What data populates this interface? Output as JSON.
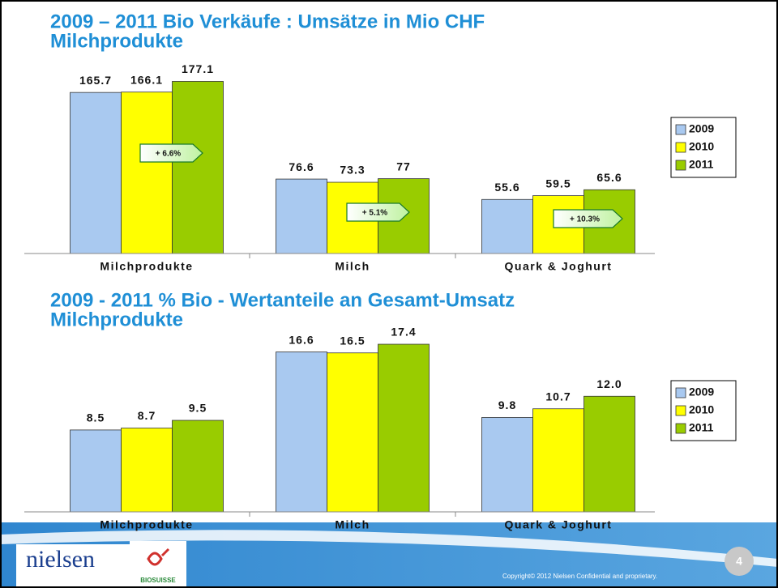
{
  "chart_data": [
    {
      "type": "bar",
      "title": "2009 – 2011 Bio Verkäufe : Umsätze in Mio CHF",
      "subtitle": "Milchprodukte",
      "categories": [
        "Milchprodukte",
        "Milch",
        "Quark & Joghurt"
      ],
      "series": [
        {
          "name": "2009",
          "color": "#a9c9f0",
          "values": [
            165.7,
            76.6,
            55.6
          ]
        },
        {
          "name": "2010",
          "color": "#ffff00",
          "values": [
            166.1,
            73.3,
            59.5
          ]
        },
        {
          "name": "2011",
          "color": "#99cc00",
          "values": [
            177.1,
            77,
            65.6
          ]
        }
      ],
      "ylim": [
        0,
        190
      ],
      "legend": "right",
      "annotations": [
        "+ 6.6%",
        "+ 5.1%",
        "+ 10.3%"
      ]
    },
    {
      "type": "bar",
      "title": "2009 - 2011 % Bio - Wertanteile an Gesamt-Umsatz",
      "subtitle": "Milchprodukte",
      "categories": [
        "Milchprodukte",
        "Milch",
        "Quark & Joghurt"
      ],
      "series": [
        {
          "name": "2009",
          "color": "#a9c9f0",
          "values": [
            8.5,
            16.6,
            9.8
          ]
        },
        {
          "name": "2010",
          "color": "#ffff00",
          "values": [
            8.7,
            16.5,
            10.7
          ]
        },
        {
          "name": "2011",
          "color": "#99cc00",
          "values": [
            9.5,
            17.4,
            12.0
          ],
          "value_labels": [
            "9.5",
            "17.4",
            "12.0"
          ]
        }
      ],
      "ylim": [
        0,
        19
      ],
      "legend": "right"
    }
  ],
  "footer": {
    "logo": "nielsen",
    "partner": "BIOSUISSE",
    "copyright": "Copyright© 2012 Nielsen Confidential and proprietary.",
    "page": "4"
  }
}
